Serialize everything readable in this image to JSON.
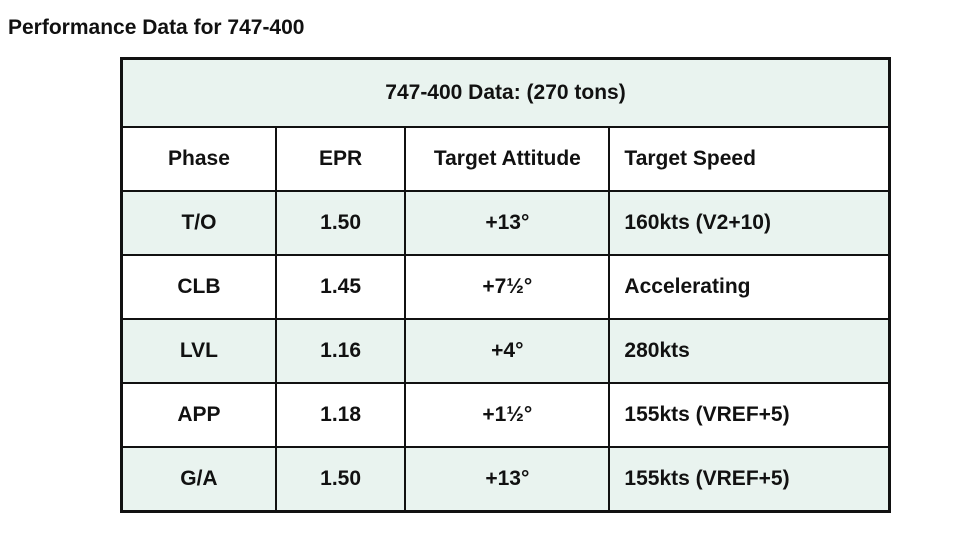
{
  "header": {
    "title": "Performance Data for 747-400"
  },
  "table": {
    "caption": "747-400 Data: (270 tons)",
    "columns": [
      "Phase",
      "EPR",
      "Target Attitude",
      "Target Speed"
    ],
    "rows": [
      [
        "T/O",
        "1.50",
        "+13°",
        "160kts (V2+10)"
      ],
      [
        "CLB",
        "1.45",
        "+7½°",
        "Accelerating"
      ],
      [
        "LVL",
        "1.16",
        "+4°",
        "280kts"
      ],
      [
        "APP",
        "1.18",
        "+1½°",
        "155kts (VREF+5)"
      ],
      [
        "G/A",
        "1.50",
        "+13°",
        "155kts (VREF+5)"
      ]
    ]
  }
}
